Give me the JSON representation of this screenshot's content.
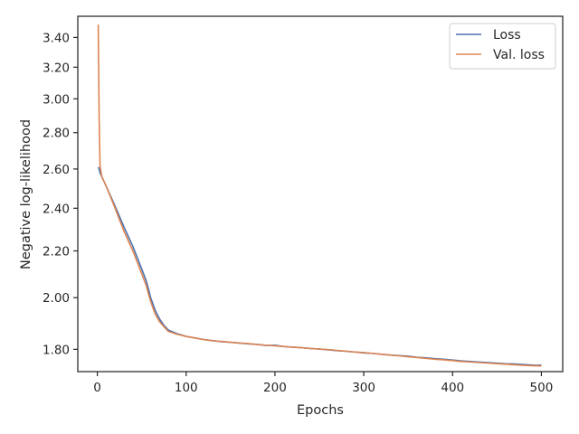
{
  "chart_data": {
    "type": "line",
    "xlabel": "Epochs",
    "ylabel": "Negative log-likelihood",
    "xlim": [
      -22,
      524
    ],
    "ylim": [
      1.72,
      3.55
    ],
    "yscale": "log",
    "grid": false,
    "legend_position": "top-right",
    "x_ticks": [
      0,
      100,
      200,
      300,
      400,
      500
    ],
    "x_tick_labels": [
      "0",
      "100",
      "200",
      "300",
      "400",
      "500"
    ],
    "y_ticks": [
      1.8,
      2.0,
      2.2,
      2.4,
      2.6,
      2.8,
      3.0,
      3.2,
      3.4
    ],
    "y_tick_labels": [
      "1.80",
      "2.00",
      "2.20",
      "2.40",
      "2.60",
      "2.80",
      "3.00",
      "3.20",
      "3.40"
    ],
    "series": [
      {
        "name": "Loss",
        "color": "#4c72b0",
        "x": [
          1,
          2,
          3,
          5,
          10,
          20,
          30,
          40,
          50,
          55,
          58,
          60,
          65,
          70,
          75,
          80,
          90,
          100,
          110,
          120,
          130,
          140,
          150,
          160,
          170,
          180,
          190,
          200,
          210,
          220,
          230,
          240,
          250,
          260,
          270,
          280,
          290,
          300,
          310,
          320,
          330,
          340,
          350,
          360,
          370,
          380,
          390,
          400,
          410,
          420,
          430,
          440,
          450,
          460,
          470,
          480,
          490,
          495,
          500
        ],
        "y": [
          2.61,
          2.6,
          2.58,
          2.56,
          2.51,
          2.41,
          2.31,
          2.22,
          2.12,
          2.07,
          2.03,
          2.0,
          1.95,
          1.915,
          1.89,
          1.872,
          1.858,
          1.848,
          1.842,
          1.836,
          1.832,
          1.828,
          1.826,
          1.823,
          1.82,
          1.818,
          1.814,
          1.815,
          1.81,
          1.808,
          1.806,
          1.803,
          1.801,
          1.798,
          1.795,
          1.793,
          1.79,
          1.787,
          1.785,
          1.782,
          1.779,
          1.777,
          1.775,
          1.771,
          1.769,
          1.766,
          1.764,
          1.761,
          1.758,
          1.756,
          1.754,
          1.752,
          1.75,
          1.748,
          1.747,
          1.745,
          1.743,
          1.742,
          1.743
        ]
      },
      {
        "name": "Val. loss",
        "color": "#dd8452",
        "x": [
          1,
          2,
          3,
          5,
          10,
          20,
          30,
          40,
          50,
          55,
          58,
          60,
          65,
          70,
          75,
          80,
          90,
          100,
          110,
          120,
          130,
          140,
          150,
          160,
          170,
          180,
          190,
          200,
          210,
          220,
          230,
          240,
          250,
          260,
          270,
          280,
          290,
          300,
          310,
          320,
          330,
          340,
          350,
          360,
          370,
          380,
          390,
          400,
          410,
          420,
          430,
          440,
          450,
          460,
          470,
          480,
          490,
          495,
          500
        ],
        "y": [
          3.49,
          2.9,
          2.62,
          2.56,
          2.51,
          2.4,
          2.29,
          2.2,
          2.1,
          2.05,
          2.01,
          1.985,
          1.935,
          1.905,
          1.885,
          1.867,
          1.856,
          1.848,
          1.842,
          1.836,
          1.832,
          1.829,
          1.826,
          1.823,
          1.821,
          1.818,
          1.815,
          1.813,
          1.81,
          1.808,
          1.806,
          1.803,
          1.801,
          1.799,
          1.796,
          1.793,
          1.79,
          1.788,
          1.785,
          1.782,
          1.779,
          1.776,
          1.773,
          1.77,
          1.767,
          1.764,
          1.762,
          1.759,
          1.756,
          1.754,
          1.752,
          1.75,
          1.748,
          1.746,
          1.744,
          1.742,
          1.741,
          1.74,
          1.74
        ]
      }
    ]
  }
}
